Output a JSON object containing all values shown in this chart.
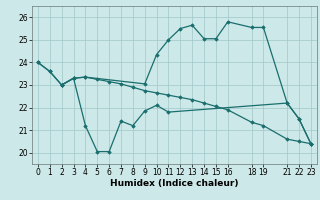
{
  "background_color": "#cde8e8",
  "grid_color": "#a0c8c8",
  "line_color": "#1a6e6e",
  "line_width": 0.9,
  "marker": "D",
  "marker_size": 1.8,
  "xlabel": "Humidex (Indice chaleur)",
  "xlabel_fontsize": 6.5,
  "tick_fontsize": 5.5,
  "ylim": [
    19.5,
    26.5
  ],
  "xlim": [
    -0.5,
    23.5
  ],
  "yticks": [
    20,
    21,
    22,
    23,
    24,
    25,
    26
  ],
  "xticks": [
    0,
    1,
    2,
    3,
    4,
    5,
    6,
    7,
    8,
    9,
    10,
    11,
    12,
    13,
    14,
    15,
    16,
    18,
    19,
    21,
    22,
    23
  ],
  "xtick_labels": [
    "0",
    "1",
    "2",
    "3",
    "4",
    "5",
    "6",
    "7",
    "8",
    "9",
    "10",
    "11",
    "12",
    "13",
    "14",
    "15",
    "16",
    "18",
    "19",
    "21",
    "22",
    "23"
  ],
  "series": [
    {
      "x": [
        0,
        1,
        2,
        3,
        4,
        9,
        10,
        11,
        12,
        13,
        14,
        15,
        16,
        18,
        19,
        21,
        22,
        23
      ],
      "y": [
        24.0,
        23.6,
        23.0,
        23.3,
        23.35,
        23.05,
        24.35,
        25.0,
        25.5,
        25.65,
        25.05,
        25.05,
        25.8,
        25.55,
        25.55,
        22.2,
        21.5,
        20.4
      ]
    },
    {
      "x": [
        0,
        1,
        2,
        3,
        4,
        5,
        6,
        7,
        8,
        9,
        10,
        11,
        12,
        13,
        14,
        15,
        16,
        18,
        19,
        21,
        22,
        23
      ],
      "y": [
        24.0,
        23.6,
        23.0,
        23.3,
        23.35,
        23.25,
        23.15,
        23.05,
        22.9,
        22.75,
        22.65,
        22.55,
        22.45,
        22.35,
        22.2,
        22.05,
        21.9,
        21.35,
        21.2,
        20.6,
        20.5,
        20.4
      ]
    },
    {
      "x": [
        2,
        3,
        4,
        5,
        6,
        7,
        8,
        9,
        10,
        11,
        21,
        22,
        23
      ],
      "y": [
        23.0,
        23.3,
        21.2,
        20.05,
        20.05,
        21.4,
        21.2,
        21.85,
        22.1,
        21.8,
        22.2,
        21.5,
        20.4
      ]
    }
  ]
}
